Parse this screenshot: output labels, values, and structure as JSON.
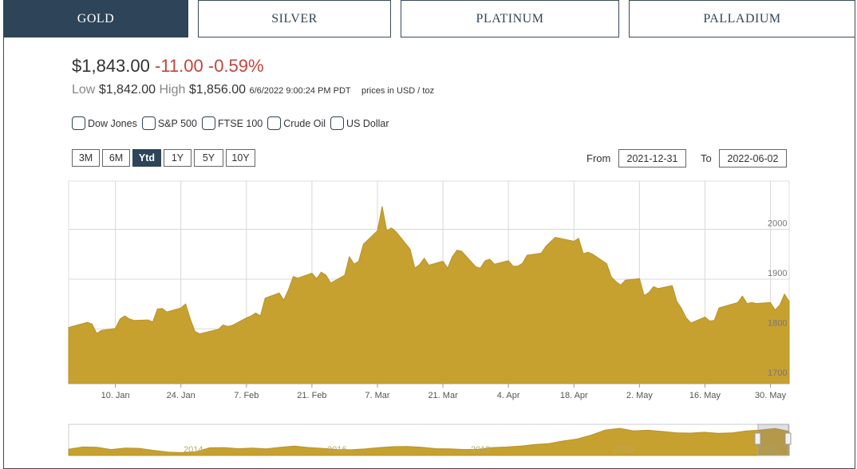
{
  "tabs": [
    {
      "label": "GOLD",
      "active": true
    },
    {
      "label": "SILVER",
      "active": false
    },
    {
      "label": "PLATINUM",
      "active": false
    },
    {
      "label": "PALLADIUM",
      "active": false
    }
  ],
  "quote": {
    "price": "$1,843.00",
    "change": "-11.00",
    "change_pct": "-0.59%",
    "low_label": "Low",
    "low": "$1,842.00",
    "high_label": "High",
    "high": "$1,856.00",
    "timestamp": "6/6/2022 9:00:24 PM PDT",
    "units": "prices in USD / toz"
  },
  "compare": [
    "Dow Jones",
    "S&P 500",
    "FTSE 100",
    "Crude Oil",
    "US Dollar"
  ],
  "periods": [
    {
      "label": "3M",
      "active": false
    },
    {
      "label": "6M",
      "active": false
    },
    {
      "label": "Ytd",
      "active": true
    },
    {
      "label": "1Y",
      "active": false
    },
    {
      "label": "5Y",
      "active": false
    },
    {
      "label": "10Y",
      "active": false
    }
  ],
  "date_range": {
    "from_label": "From",
    "from": "2021-12-31",
    "to_label": "To",
    "to": "2022-06-02"
  },
  "colors": {
    "series": "#c7a12f",
    "accent": "#2d4459",
    "negative": "#c0463f"
  },
  "chart_data": {
    "type": "area",
    "series": [
      {
        "x": [
          "2022-01-03",
          "2022-01-04",
          "2022-01-05",
          "2022-01-06",
          "2022-01-07",
          "2022-01-10",
          "2022-01-11",
          "2022-01-12",
          "2022-01-13",
          "2022-01-14",
          "2022-01-17",
          "2022-01-18",
          "2022-01-19",
          "2022-01-20",
          "2022-01-21",
          "2022-01-24",
          "2022-01-25",
          "2022-01-26",
          "2022-01-27",
          "2022-01-28",
          "2022-01-31",
          "2022-02-01",
          "2022-02-02",
          "2022-02-03",
          "2022-02-04",
          "2022-02-07",
          "2022-02-08",
          "2022-02-09",
          "2022-02-10",
          "2022-02-11",
          "2022-02-14",
          "2022-02-15",
          "2022-02-16",
          "2022-02-17",
          "2022-02-18",
          "2022-02-21",
          "2022-02-22",
          "2022-02-23",
          "2022-02-24",
          "2022-02-25",
          "2022-02-28",
          "2022-03-01",
          "2022-03-02",
          "2022-03-03",
          "2022-03-04",
          "2022-03-07",
          "2022-03-08",
          "2022-03-09",
          "2022-03-10",
          "2022-03-11",
          "2022-03-14",
          "2022-03-15",
          "2022-03-16",
          "2022-03-17",
          "2022-03-18",
          "2022-03-21",
          "2022-03-22",
          "2022-03-23",
          "2022-03-24",
          "2022-03-25",
          "2022-03-28",
          "2022-03-29",
          "2022-03-30",
          "2022-03-31",
          "2022-04-01",
          "2022-04-04",
          "2022-04-05",
          "2022-04-06",
          "2022-04-07",
          "2022-04-08",
          "2022-04-11",
          "2022-04-12",
          "2022-04-13",
          "2022-04-14",
          "2022-04-18",
          "2022-04-19",
          "2022-04-20",
          "2022-04-21",
          "2022-04-22",
          "2022-04-25",
          "2022-04-26",
          "2022-04-27",
          "2022-04-28",
          "2022-04-29",
          "2022-05-02",
          "2022-05-03",
          "2022-05-04",
          "2022-05-05",
          "2022-05-06",
          "2022-05-09",
          "2022-05-10",
          "2022-05-11",
          "2022-05-12",
          "2022-05-13",
          "2022-05-16",
          "2022-05-17",
          "2022-05-18",
          "2022-05-19",
          "2022-05-20",
          "2022-05-23",
          "2022-05-24",
          "2022-05-25",
          "2022-05-26",
          "2022-05-27",
          "2022-05-30",
          "2022-05-31",
          "2022-06-01",
          "2022-06-02",
          "2022-06-03"
        ],
        "values": [
          1803,
          1813,
          1810,
          1791,
          1797,
          1801,
          1820,
          1826,
          1820,
          1817,
          1818,
          1814,
          1840,
          1841,
          1834,
          1842,
          1850,
          1820,
          1795,
          1790,
          1797,
          1799,
          1808,
          1805,
          1807,
          1822,
          1826,
          1832,
          1826,
          1862,
          1872,
          1858,
          1879,
          1905,
          1902,
          1912,
          1901,
          1914,
          1908,
          1892,
          1908,
          1945,
          1930,
          1936,
          1970,
          1997,
          2046,
          1997,
          2003,
          1995,
          1960,
          1922,
          1929,
          1942,
          1928,
          1936,
          1922,
          1945,
          1958,
          1956,
          1925,
          1922,
          1937,
          1940,
          1930,
          1937,
          1926,
          1926,
          1932,
          1948,
          1952,
          1966,
          1975,
          1984,
          1976,
          1982,
          1951,
          1954,
          1950,
          1931,
          1904,
          1895,
          1888,
          1898,
          1901,
          1867,
          1873,
          1885,
          1881,
          1887,
          1855,
          1841,
          1822,
          1812,
          1824,
          1816,
          1817,
          1842,
          1845,
          1853,
          1866,
          1851,
          1853,
          1851,
          1853,
          1838,
          1848,
          1870,
          1855
        ],
        "pixel_x_note": ""
      }
    ],
    "x_ticks": [
      "10. Jan",
      "24. Jan",
      "7. Feb",
      "21. Feb",
      "7. Mar",
      "21. Mar",
      "4. Apr",
      "18. Apr",
      "2. May",
      "16. May",
      "30. May"
    ],
    "y_ticks": [
      "2000",
      "1900",
      "1800",
      "1700"
    ],
    "ylim": [
      1690,
      2097
    ],
    "grid": true,
    "navigator_labels": [
      "2014",
      "2016",
      "2018",
      "2020",
      "2022"
    ],
    "navigator_values": [
      1220,
      1300,
      1290,
      1210,
      1260,
      1250,
      1180,
      1120,
      1100,
      1130,
      1270,
      1280,
      1240,
      1260,
      1230,
      1290,
      1330,
      1280,
      1250,
      1210,
      1200,
      1230,
      1280,
      1310,
      1320,
      1290,
      1240,
      1230,
      1210,
      1220,
      1280,
      1300,
      1330,
      1390,
      1420,
      1510,
      1580,
      1720,
      1900,
      1960,
      1870,
      1890,
      1850,
      1800,
      1790,
      1820,
      1780,
      1800,
      1870,
      1900,
      1950,
      1850
    ]
  }
}
